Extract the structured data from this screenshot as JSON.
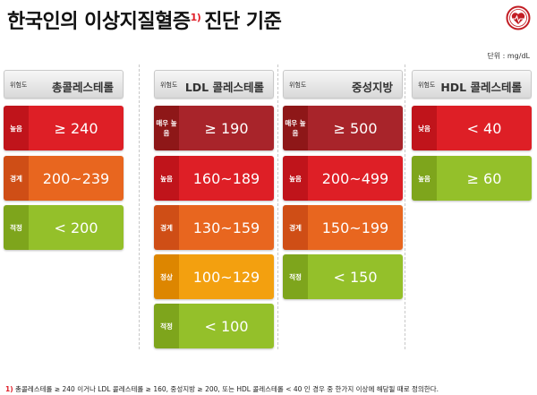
{
  "title": {
    "text": "한국인의 이상지질혈증",
    "footnote_mark": "1)",
    "suffix": "진단 기준"
  },
  "unit": "단위 : mg/dL",
  "level_label": "위험도",
  "columns": [
    {
      "header": "총콜레스테롤",
      "rows": [
        {
          "level": "높음",
          "value": "≥ 240",
          "color": "red"
        },
        {
          "level": "경계",
          "value": "200~239",
          "color": "orange"
        },
        {
          "level": "적정",
          "value": "< 200",
          "color": "green"
        }
      ]
    },
    {
      "header": "LDL 콜레스테롤",
      "rows": [
        {
          "level": "매우 높음",
          "value": "≥ 190",
          "color": "darkred"
        },
        {
          "level": "높음",
          "value": "160~189",
          "color": "red"
        },
        {
          "level": "경계",
          "value": "130~159",
          "color": "orange"
        },
        {
          "level": "정상",
          "value": "100~129",
          "color": "amber"
        },
        {
          "level": "적정",
          "value": "< 100",
          "color": "green"
        }
      ]
    },
    {
      "header": "중성지방",
      "rows": [
        {
          "level": "매우 높음",
          "value": "≥ 500",
          "color": "darkred"
        },
        {
          "level": "높음",
          "value": "200~499",
          "color": "red"
        },
        {
          "level": "경계",
          "value": "150~199",
          "color": "orange"
        },
        {
          "level": "적정",
          "value": "< 150",
          "color": "green"
        }
      ]
    },
    {
      "header": "HDL 콜레스테롤",
      "rows": [
        {
          "level": "낮음",
          "value": "< 40",
          "color": "red"
        },
        {
          "level": "높음",
          "value": "≥ 60",
          "color": "green"
        }
      ]
    }
  ],
  "footnote": {
    "mark": "1)",
    "text": "총콜레스테롤 ≥ 240 이거나 LDL 콜레스테롤 ≥ 160, 중성지방 ≥ 200, 또는 HDL 콜레스테롤 < 40 인 경우 중 한가지 이상에 해당될 때로 정의한다."
  },
  "colors": {
    "darkred": "#a8242a",
    "red": "#de1f26",
    "orange": "#e8661f",
    "amber": "#f3a00f",
    "green": "#94c02a",
    "accent": "#e0202a"
  },
  "logo_icon": "heart-logo-icon"
}
